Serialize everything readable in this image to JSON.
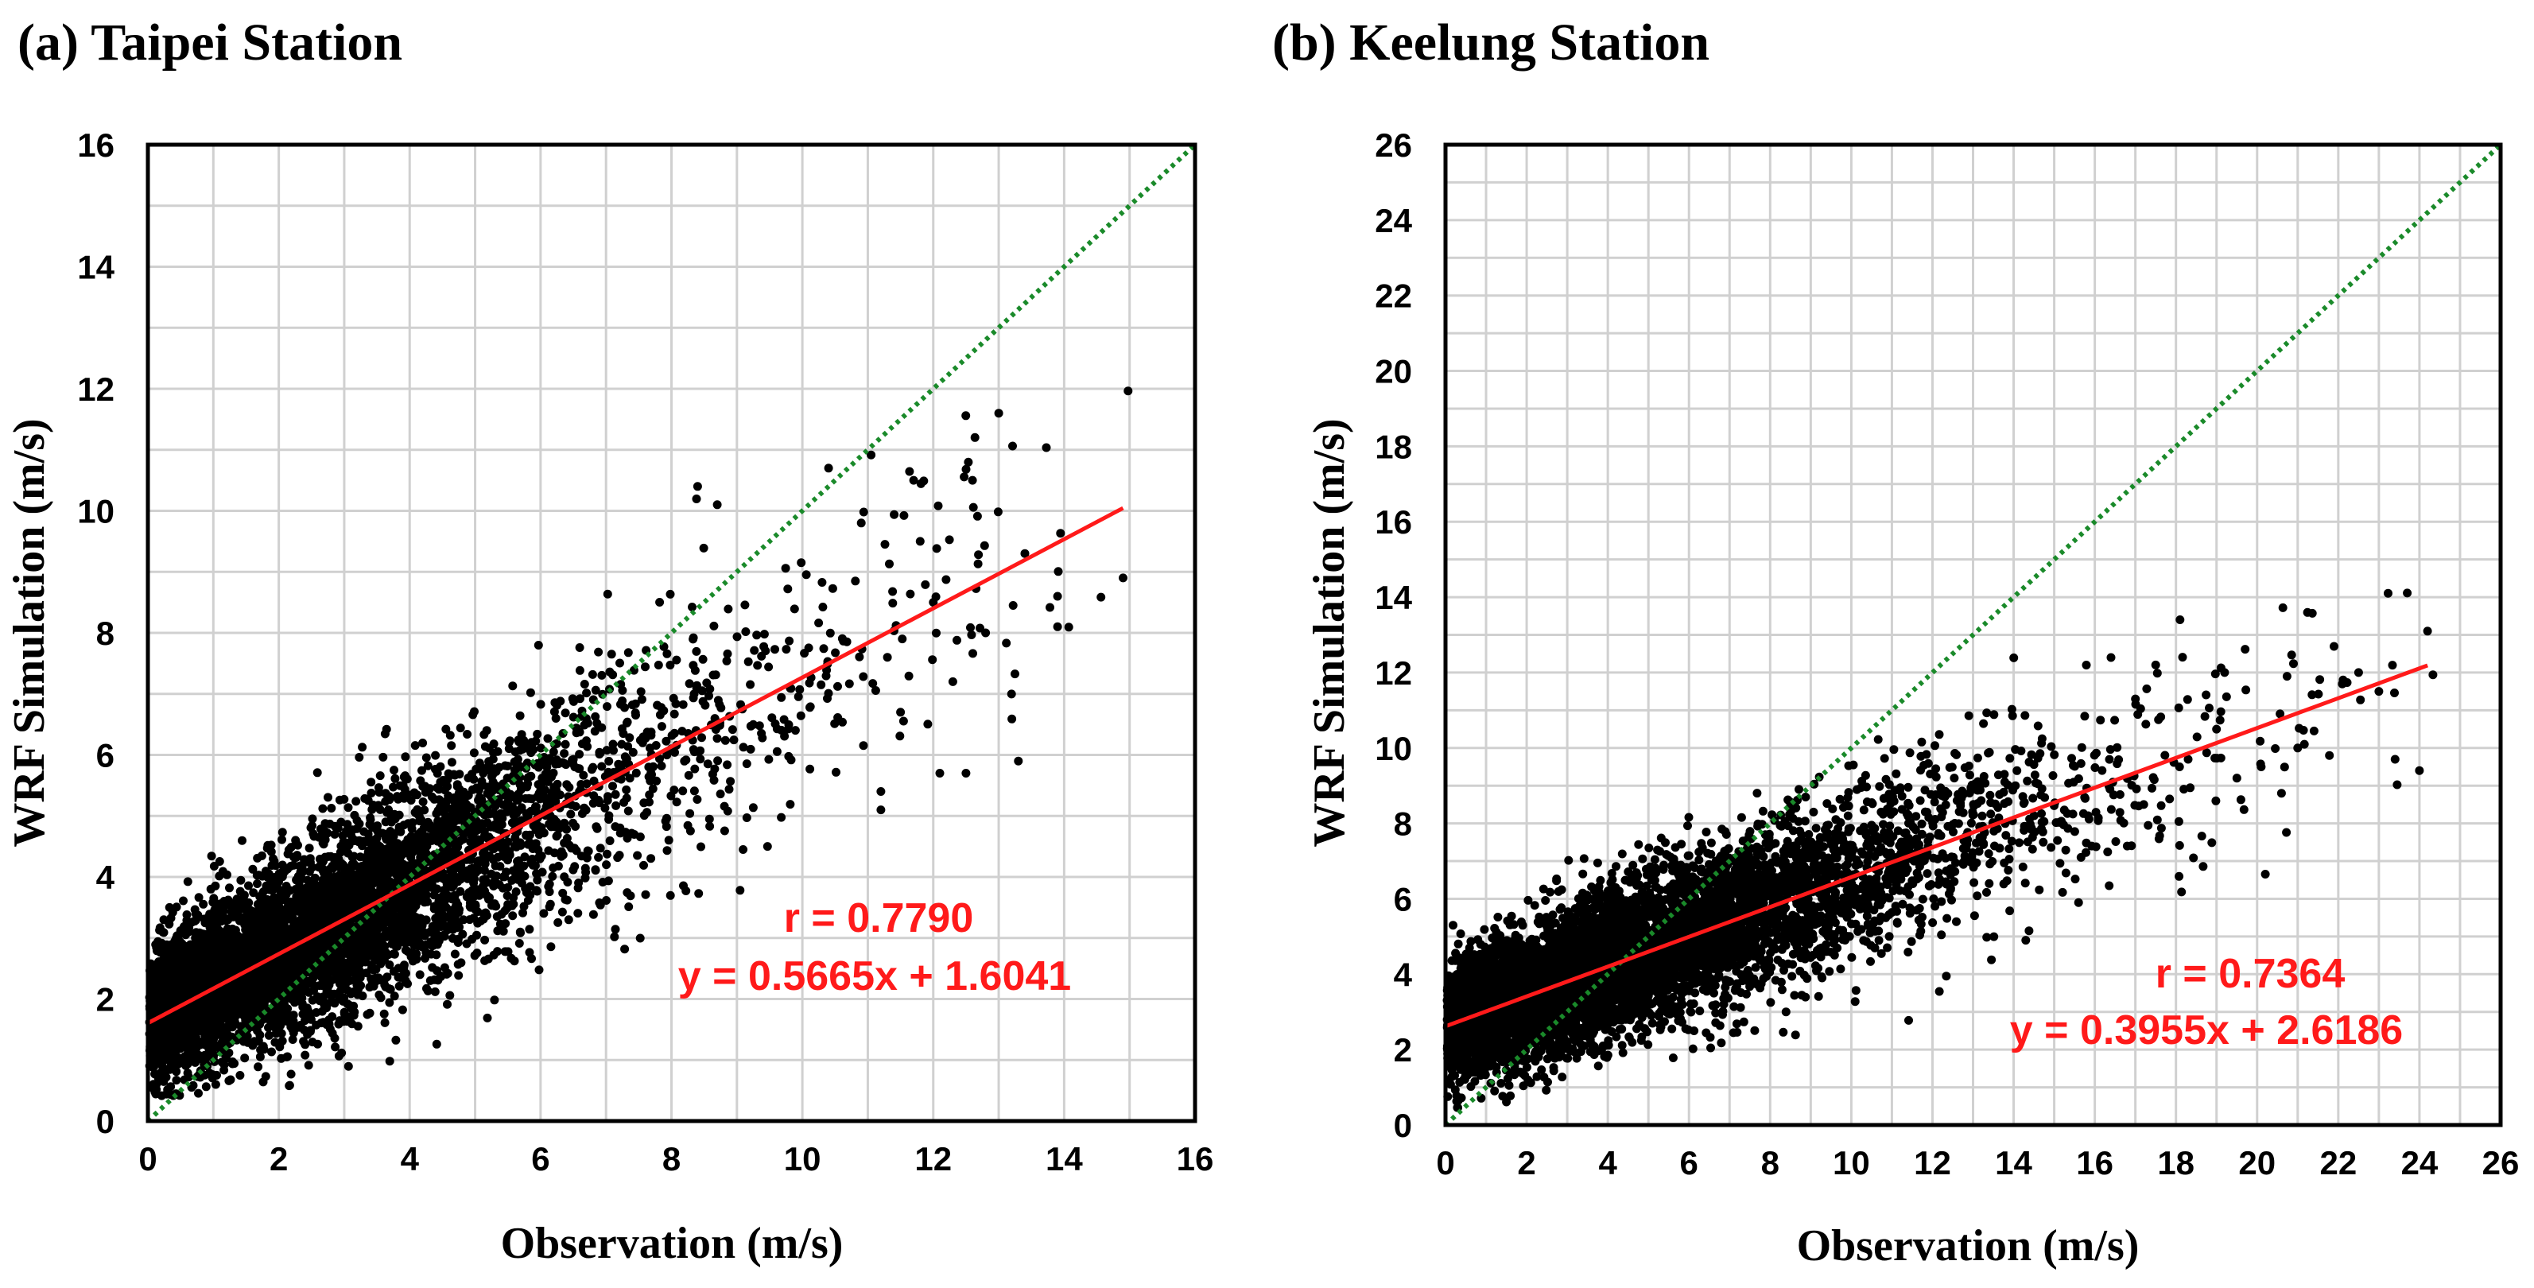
{
  "colors": {
    "points": "#000000",
    "regression": "#ff1a1a",
    "identity": "#1a8a2a",
    "stats": "#ff1a1a"
  },
  "chart_data": [
    {
      "type": "scatter",
      "title": "(a) Taipei Station",
      "xlabel": "Observation  (m/s)",
      "ylabel": "WRF Simulation (m/s)",
      "xlim": [
        0,
        16
      ],
      "ylim": [
        0,
        16
      ],
      "xticks": [
        0,
        2,
        4,
        6,
        8,
        10,
        12,
        14,
        16
      ],
      "yticks": [
        0,
        2,
        4,
        6,
        8,
        10,
        12,
        14,
        16
      ],
      "grid": true,
      "r_label": "r = 0.7790",
      "equation_label": "y = 0.5665x + 1.6041",
      "fit": {
        "slope": 0.5665,
        "intercept": 1.6041,
        "x_range": [
          0,
          14.9
        ]
      },
      "identity_line": true,
      "cloud": {
        "n": 5200,
        "seed": 11,
        "x_max": 15,
        "spread": 0.85
      },
      "outliers": [
        [
          13.0,
          11.6
        ],
        [
          12.6,
          10.5
        ],
        [
          11.7,
          10.5
        ],
        [
          10.4,
          10.7
        ],
        [
          8.4,
          10.4
        ],
        [
          8.7,
          10.1
        ],
        [
          14.9,
          8.9
        ],
        [
          13.9,
          8.6
        ],
        [
          13.9,
          8.1
        ],
        [
          13.3,
          5.9
        ],
        [
          12.5,
          5.7
        ],
        [
          11.2,
          5.1
        ],
        [
          11.2,
          5.4
        ],
        [
          12.1,
          5.7
        ],
        [
          13.4,
          9.3
        ],
        [
          12.0,
          8.5
        ],
        [
          11.3,
          7.6
        ],
        [
          11.8,
          9.5
        ],
        [
          12.8,
          8.0
        ],
        [
          10.9,
          9.8
        ],
        [
          12.3,
          7.2
        ],
        [
          11.5,
          6.7
        ]
      ]
    },
    {
      "type": "scatter",
      "title": "(b) Keelung Station",
      "xlabel": "Observation  (m/s)",
      "ylabel": "WRF Simulation (m/s)",
      "xlim": [
        0,
        26
      ],
      "ylim": [
        0,
        26
      ],
      "xticks": [
        0,
        2,
        4,
        6,
        8,
        10,
        12,
        14,
        16,
        18,
        20,
        22,
        24,
        26
      ],
      "yticks": [
        0,
        2,
        4,
        6,
        8,
        10,
        12,
        14,
        16,
        18,
        20,
        22,
        24,
        26
      ],
      "grid": true,
      "r_label": "r = 0.7364",
      "equation_label": "y = 0.3955x + 2.6186",
      "fit": {
        "slope": 0.3955,
        "intercept": 2.6186,
        "x_range": [
          0,
          24.2
        ]
      },
      "identity_line": true,
      "cloud": {
        "n": 6500,
        "seed": 23,
        "x_max": 24.5,
        "spread": 1.05
      },
      "outliers": [
        [
          18.1,
          13.4
        ],
        [
          24.2,
          13.1
        ],
        [
          16.4,
          12.4
        ],
        [
          17.5,
          12.2
        ],
        [
          22.5,
          12.0
        ],
        [
          23.0,
          11.5
        ],
        [
          19.2,
          12.0
        ],
        [
          23.4,
          9.7
        ],
        [
          24.0,
          9.4
        ],
        [
          20.1,
          9.5
        ],
        [
          15.6,
          5.9
        ],
        [
          14.3,
          4.9
        ],
        [
          21.0,
          10.0
        ],
        [
          19.5,
          9.2
        ],
        [
          18.3,
          9.7
        ],
        [
          17.0,
          11.3
        ],
        [
          16.8,
          7.4
        ],
        [
          22.1,
          11.7
        ],
        [
          20.6,
          8.8
        ],
        [
          19.0,
          10.5
        ]
      ]
    }
  ]
}
